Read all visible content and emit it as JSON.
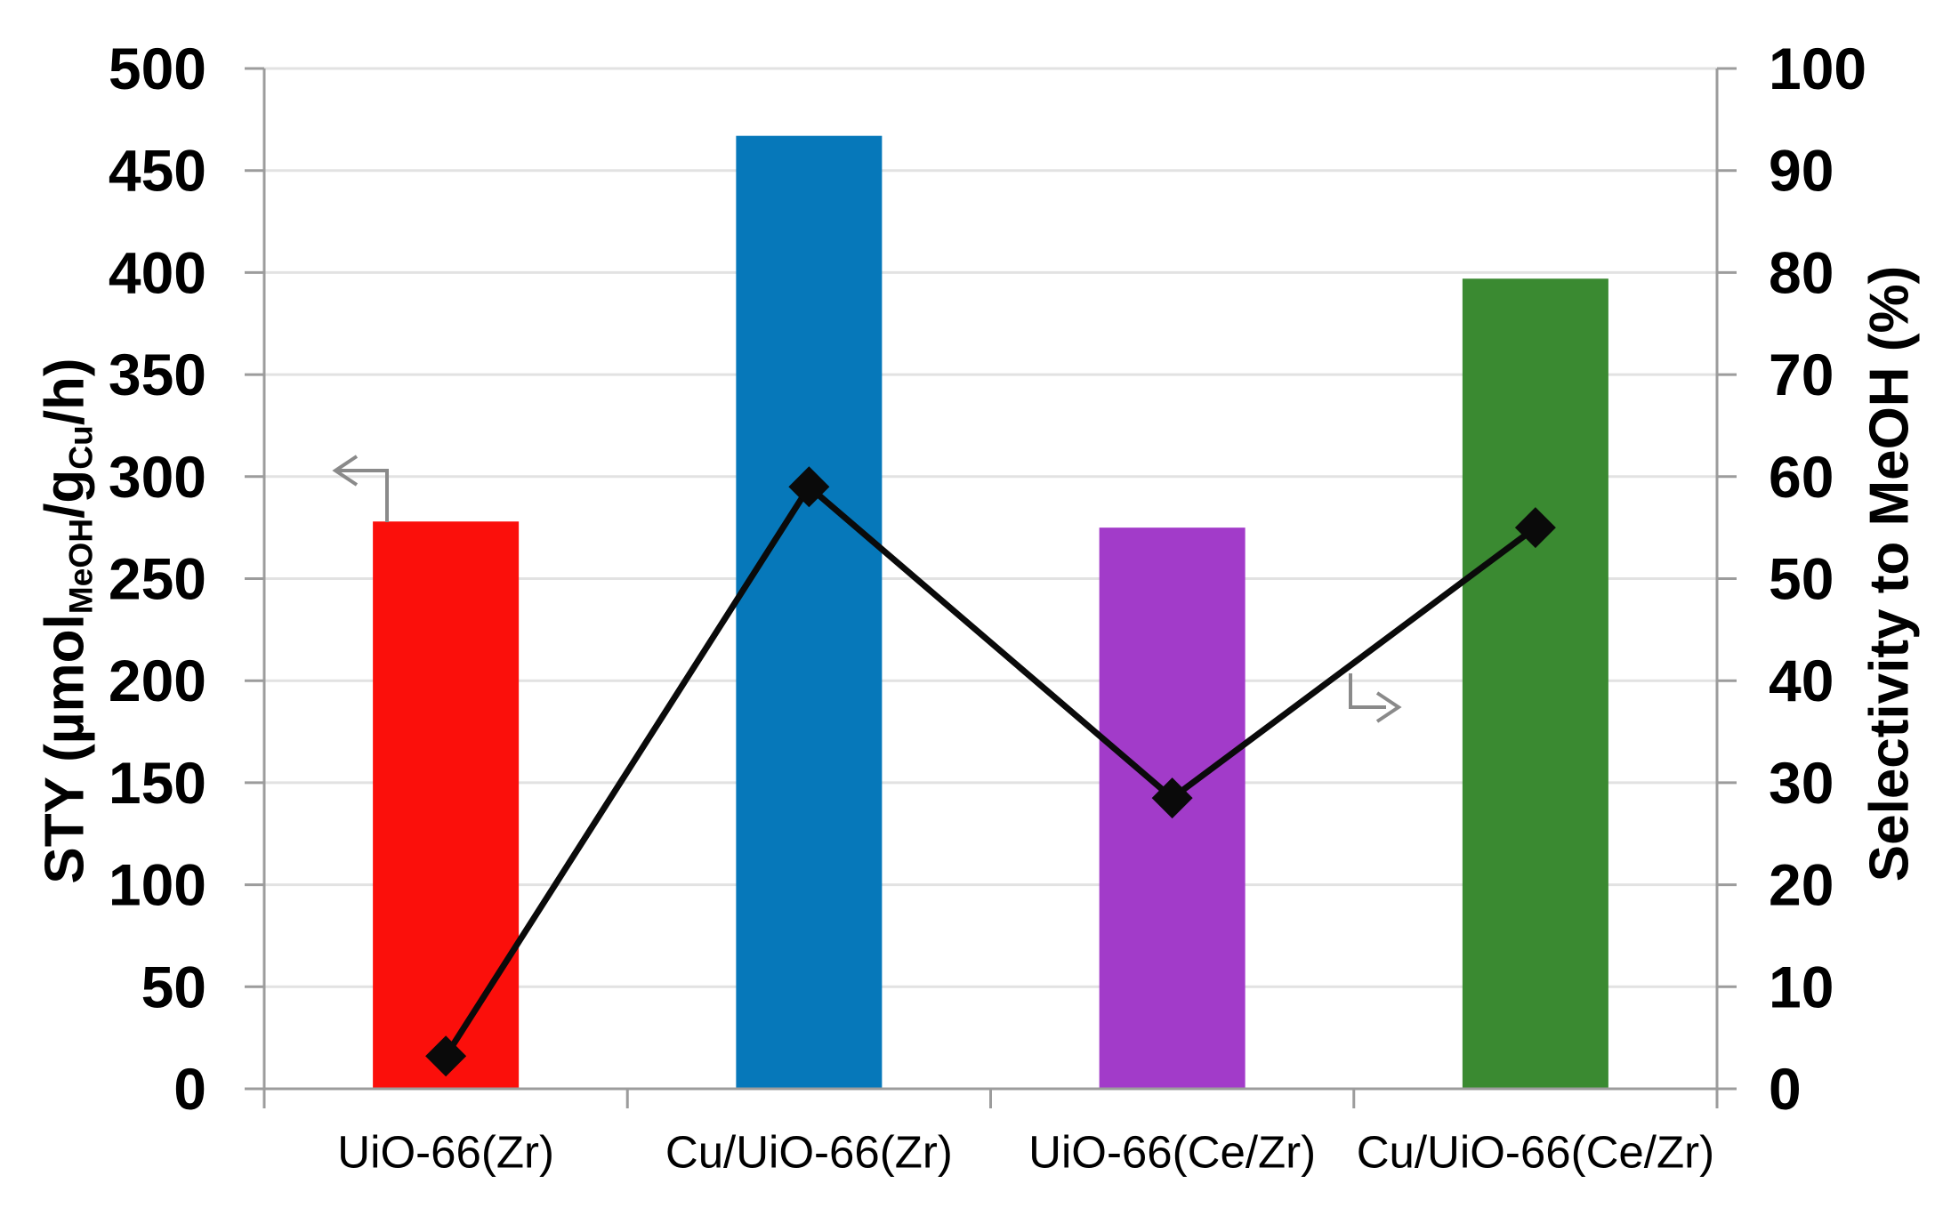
{
  "chart_data": {
    "type": "combo",
    "title": "",
    "categories": [
      "UiO-66(Zr)",
      "Cu/UiO-66(Zr)",
      "UiO-66(Ce/Zr)",
      "Cu/UiO-66(Ce/Zr)"
    ],
    "series": [
      {
        "name": "STY",
        "chart_type": "bar",
        "axis": "left",
        "values": [
          278,
          467,
          275,
          397
        ],
        "bar_colors": [
          "#FB0F0B",
          "#0678BA",
          "#A23BC9",
          "#3A8A31"
        ]
      },
      {
        "name": "Selectivity to MeOH",
        "chart_type": "line",
        "axis": "right",
        "marker": "diamond",
        "color": "#0A0A0A",
        "values": [
          3.2,
          59,
          28.5,
          55
        ]
      }
    ],
    "left_axis": {
      "title_pre": "STY (µmol",
      "title_sub1": "MeOH",
      "title_mid": "/g",
      "title_sub2": "Cu",
      "title_post": "/h)",
      "range": [
        0,
        500
      ],
      "tick_step": 50,
      "tick_labels": [
        "0",
        "50",
        "100",
        "150",
        "200",
        "250",
        "300",
        "350",
        "400",
        "450",
        "500"
      ]
    },
    "right_axis": {
      "title": "Selectivity to MeOH (%)",
      "range": [
        0,
        100
      ],
      "tick_step": 10,
      "tick_labels": [
        "0",
        "10",
        "20",
        "30",
        "40",
        "50",
        "60",
        "70",
        "80",
        "90",
        "100"
      ]
    },
    "grid": true,
    "legend": "none",
    "annotations": [
      "left-axis-indicator-arrow",
      "right-axis-indicator-arrow"
    ],
    "colors": {
      "grid": "#E2E2E2",
      "axis": "#9C9C9C",
      "arrow": "#8A8A8A",
      "text": "#000000",
      "background": "#FFFFFF"
    }
  }
}
